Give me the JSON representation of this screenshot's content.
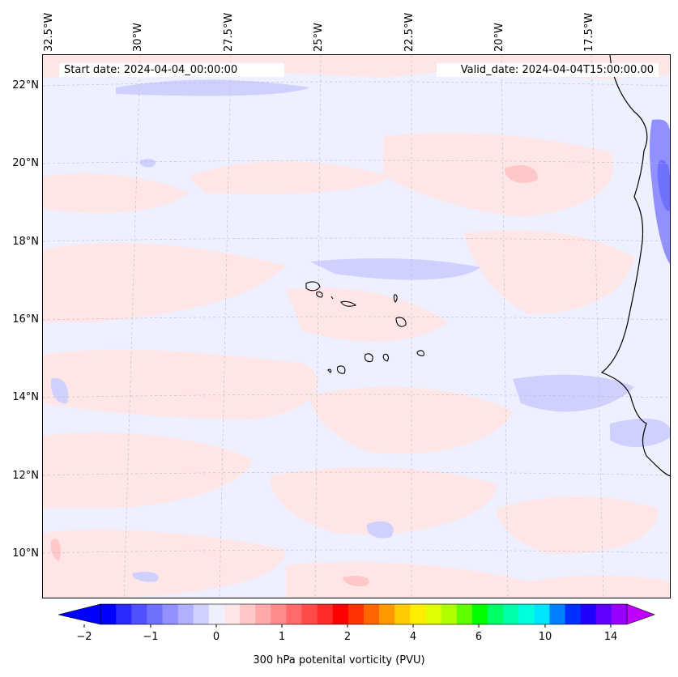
{
  "map": {
    "start_date": "Start date: 2024-04-04_00:00:00",
    "valid_date": "Valid_date: 2024-04-04T15:00:00.00",
    "lon_labels": [
      "32.5°W",
      "30°W",
      "27.5°W",
      "25°W",
      "22.5°W",
      "20°W",
      "17.5°W"
    ],
    "lat_labels": [
      "22°N",
      "20°N",
      "18°N",
      "16°N",
      "14°N",
      "12°N",
      "10°N"
    ],
    "extent": {
      "lon_min": -32.6,
      "lon_max": -15.8,
      "lat_min": 8.9,
      "lat_max": 22.8
    }
  },
  "colorbar": {
    "label": "300 hPa potenital vorticity (PVU)",
    "tick_labels": [
      "−2",
      "−1",
      "0",
      "1",
      "2",
      "4",
      "6",
      "10",
      "14"
    ],
    "colors": [
      "#0000ff",
      "#2a2aff",
      "#5050ff",
      "#7070ff",
      "#9090ff",
      "#b0b0ff",
      "#d0d0ff",
      "#eef0ff",
      "#ffe6e6",
      "#ffc8c8",
      "#ffaaaa",
      "#ff8a8a",
      "#ff6a6a",
      "#ff4a4a",
      "#ff2a2a",
      "#ff0000",
      "#ff3300",
      "#ff6600",
      "#ff9900",
      "#ffcc00",
      "#ffee00",
      "#e0ff00",
      "#b0ff00",
      "#60ff00",
      "#00ff00",
      "#00ff66",
      "#00ffaa",
      "#00ffdd",
      "#00e5ff",
      "#0080ff",
      "#0030ff",
      "#2000ff",
      "#6000ff",
      "#9a00ff"
    ],
    "extend_low_color": "#0000ff",
    "extend_high_color": "#c000ff"
  }
}
